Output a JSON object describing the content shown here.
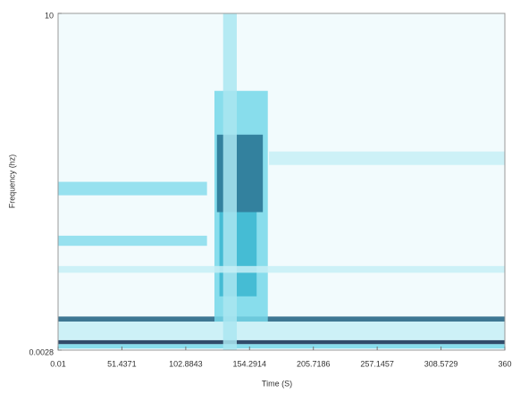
{
  "chart_data": {
    "type": "spectrogram",
    "xlabel": "Time (S)",
    "ylabel": "Frequency (hz)",
    "xlim": [
      0.01,
      360
    ],
    "ylim": [
      0.0028,
      10
    ],
    "xticks": [
      0.01,
      51.4371,
      102.8843,
      154.2914,
      205.7186,
      257.1457,
      308.5729,
      360
    ],
    "yticks": [
      0.0028,
      10
    ],
    "features": [
      {
        "t": [
          0.01,
          360
        ],
        "f": [
          0.18,
          0.3
        ],
        "level": 0.95
      },
      {
        "t": [
          0.01,
          360
        ],
        "f": [
          0.05,
          0.18
        ],
        "level": 0.35
      },
      {
        "t": [
          0.01,
          360
        ],
        "f": [
          0.85,
          1.0
        ],
        "level": 0.8
      },
      {
        "t": [
          0.01,
          360
        ],
        "f": [
          0.3,
          0.85
        ],
        "level": 0.12
      },
      {
        "t": [
          126,
          169
        ],
        "f": [
          0.85,
          7.7
        ],
        "level": 0.35
      },
      {
        "t": [
          128,
          165
        ],
        "f": [
          4.1,
          6.4
        ],
        "level": 0.75
      },
      {
        "t": [
          130,
          160
        ],
        "f": [
          1.6,
          4.1
        ],
        "level": 0.55
      },
      {
        "t": [
          133,
          144
        ],
        "f": [
          0.0028,
          10
        ],
        "level": 0.2
      },
      {
        "t": [
          0.01,
          120
        ],
        "f": [
          4.6,
          5.0
        ],
        "level": 0.3
      },
      {
        "t": [
          0.01,
          120
        ],
        "f": [
          3.1,
          3.4
        ],
        "level": 0.3
      },
      {
        "t": [
          0.01,
          360
        ],
        "f": [
          2.3,
          2.5
        ],
        "level": 0.12
      },
      {
        "t": [
          170,
          360
        ],
        "f": [
          5.5,
          5.9
        ],
        "level": 0.12
      }
    ]
  }
}
